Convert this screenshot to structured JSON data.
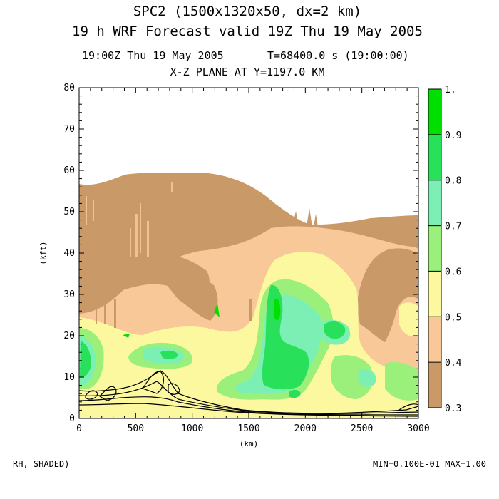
{
  "chart_data": {
    "type": "heatmap",
    "title_line1": "SPC2 (1500x1320x50, dx=2 km)",
    "title_line2": "19 h  WRF Forecast valid 19Z Thu 19 May 2005",
    "subtitle_time": "19:00Z Thu 19 May 2005",
    "subtitle_seconds": "T=68400.0 s (19:00:00)",
    "plane_label": "X-Z PLANE AT Y=1197.0 KM",
    "xlabel": "(km)",
    "ylabel": "(kft)",
    "xlim": [
      0,
      3000
    ],
    "ylim": [
      0,
      80
    ],
    "x_ticks": [
      "0",
      "500",
      "1000",
      "1500",
      "2000",
      "2500",
      "3000"
    ],
    "y_ticks": [
      "0",
      "10",
      "20",
      "30",
      "40",
      "50",
      "60",
      "70",
      "80"
    ],
    "colorbar": {
      "levels": [
        "0.3",
        "0.4",
        "0.5",
        "0.6",
        "0.7",
        "0.8",
        "0.9",
        "1."
      ],
      "colors": [
        "#c99a68",
        "#f8c898",
        "#fbf8a0",
        "#9af07a",
        "#7cf0b4",
        "#28e05a",
        "#00e000",
        "#30c898"
      ]
    },
    "field_label": "RH, SHADED)",
    "min_max": "MIN=0.100E-01 MAX=1.00"
  }
}
